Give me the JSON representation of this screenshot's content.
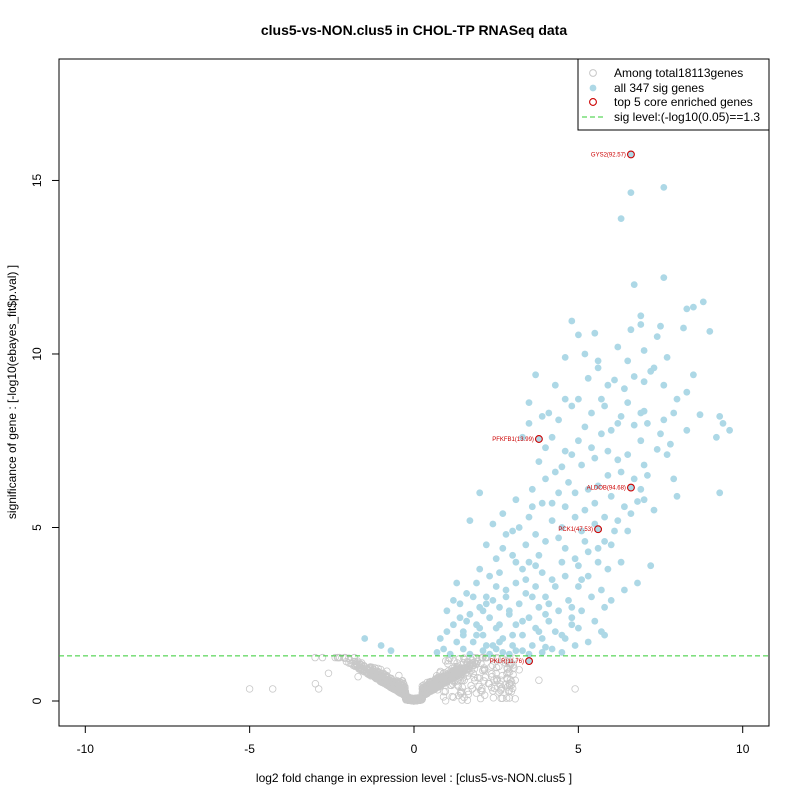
{
  "chart_data": {
    "type": "scatter",
    "title": "clus5-vs-NON.clus5 in CHOL-TP RNASeq data",
    "xlabel": "log2 fold change in expression level : [clus5-vs-NON.clus5 ]",
    "ylabel": "significance of gene : [-log10(ebayes_fit$p.val) ]",
    "xlim": [
      -10.8,
      10.8
    ],
    "ylim": [
      -0.72,
      18.5
    ],
    "x_ticks": [
      -10,
      -5,
      0,
      5,
      10
    ],
    "y_ticks": [
      0,
      5,
      10,
      15
    ],
    "sig_level": 1.3,
    "colors": {
      "background_points": "#c8c8c8",
      "sig_points": "#add8e6",
      "core_points": "#cc0000",
      "sig_line": "#33cc33"
    },
    "legend": {
      "position": "top-right",
      "entries": [
        {
          "label": "Among total18113genes",
          "style": "open-grey"
        },
        {
          "label": "all 347 sig genes",
          "style": "filled-blue"
        },
        {
          "label": "top 5 core enriched genes",
          "style": "open-red"
        },
        {
          "label": "sig level:(-log10(0.05)==1.3",
          "style": "dashed-green"
        }
      ]
    },
    "core_genes": [
      {
        "label": "GYS2(92.57)",
        "x": 6.6,
        "y": 15.75
      },
      {
        "label": "PFKFB1(13.99)",
        "x": 3.8,
        "y": 7.55
      },
      {
        "label": "ALDOB(94.68)",
        "x": 6.6,
        "y": 6.15
      },
      {
        "label": "PCK1(47.53)",
        "x": 5.6,
        "y": 4.95
      },
      {
        "label": "PKLR(11.76)",
        "x": 3.5,
        "y": 1.15
      }
    ],
    "sig_genes": [
      [
        7.6,
        14.8
      ],
      [
        6.6,
        14.65
      ],
      [
        6.3,
        13.9
      ],
      [
        7.6,
        12.2
      ],
      [
        6.7,
        12.0
      ],
      [
        8.8,
        11.5
      ],
      [
        8.3,
        11.3
      ],
      [
        8.5,
        11.35
      ],
      [
        6.9,
        10.85
      ],
      [
        7.5,
        10.8
      ],
      [
        4.8,
        10.95
      ],
      [
        5.5,
        10.6
      ],
      [
        6.6,
        10.7
      ],
      [
        7.4,
        10.5
      ],
      [
        8.2,
        10.75
      ],
      [
        9.0,
        10.65
      ],
      [
        5.0,
        10.55
      ],
      [
        5.2,
        10.0
      ],
      [
        6.2,
        10.2
      ],
      [
        7.0,
        10.1
      ],
      [
        7.7,
        9.9
      ],
      [
        4.6,
        9.9
      ],
      [
        5.6,
        9.6
      ],
      [
        6.5,
        9.8
      ],
      [
        7.2,
        9.5
      ],
      [
        5.9,
        9.1
      ],
      [
        6.4,
        9.0
      ],
      [
        7.0,
        9.2
      ],
      [
        3.7,
        9.4
      ],
      [
        4.3,
        9.1
      ],
      [
        5.3,
        9.3
      ],
      [
        6.1,
        9.25
      ],
      [
        7.6,
        9.1
      ],
      [
        8.3,
        8.9
      ],
      [
        4.6,
        8.7
      ],
      [
        5.0,
        8.7
      ],
      [
        5.8,
        8.5
      ],
      [
        6.5,
        8.6
      ],
      [
        7.0,
        8.35
      ],
      [
        8.0,
        8.7
      ],
      [
        3.5,
        8.6
      ],
      [
        4.1,
        8.3
      ],
      [
        4.8,
        8.5
      ],
      [
        3.9,
        8.2
      ],
      [
        5.4,
        8.3
      ],
      [
        6.3,
        8.2
      ],
      [
        7.1,
        8.0
      ],
      [
        7.6,
        8.1
      ],
      [
        8.7,
        8.25
      ],
      [
        9.3,
        8.2
      ],
      [
        3.5,
        8.0
      ],
      [
        4.4,
        8.1
      ],
      [
        5.2,
        7.9
      ],
      [
        6.0,
        7.8
      ],
      [
        6.7,
        7.95
      ],
      [
        7.5,
        7.7
      ],
      [
        8.3,
        7.8
      ],
      [
        9.6,
        7.8
      ],
      [
        3.3,
        7.6
      ],
      [
        4.2,
        7.6
      ],
      [
        5.7,
        7.7
      ],
      [
        6.9,
        7.5
      ],
      [
        7.8,
        7.4
      ],
      [
        9.2,
        7.6
      ],
      [
        4.0,
        7.3
      ],
      [
        4.8,
        7.1
      ],
      [
        5.5,
        7.0
      ],
      [
        6.2,
        6.95
      ],
      [
        7.4,
        7.25
      ],
      [
        3.8,
        6.9
      ],
      [
        4.5,
        6.75
      ],
      [
        5.1,
        6.8
      ],
      [
        6.3,
        6.6
      ],
      [
        7.1,
        6.5
      ],
      [
        4.0,
        6.4
      ],
      [
        4.7,
        6.3
      ],
      [
        5.9,
        6.5
      ],
      [
        6.7,
        6.4
      ],
      [
        3.6,
        6.1
      ],
      [
        4.4,
        6.0
      ],
      [
        5.3,
        6.1
      ],
      [
        6.0,
        5.9
      ],
      [
        6.8,
        5.75
      ],
      [
        7.3,
        5.5
      ],
      [
        2.0,
        6.0
      ],
      [
        3.1,
        5.8
      ],
      [
        3.9,
        5.7
      ],
      [
        4.6,
        5.6
      ],
      [
        5.2,
        5.5
      ],
      [
        5.8,
        5.3
      ],
      [
        6.4,
        5.6
      ],
      [
        2.7,
        5.4
      ],
      [
        3.5,
        5.3
      ],
      [
        4.2,
        5.2
      ],
      [
        4.9,
        5.3
      ],
      [
        5.5,
        5.1
      ],
      [
        6.2,
        5.2
      ],
      [
        1.7,
        5.2
      ],
      [
        2.4,
        5.1
      ],
      [
        3.0,
        4.9
      ],
      [
        3.7,
        4.8
      ],
      [
        4.4,
        4.7
      ],
      [
        5.1,
        4.9
      ],
      [
        5.8,
        4.6
      ],
      [
        6.5,
        4.9
      ],
      [
        2.2,
        4.5
      ],
      [
        2.7,
        4.4
      ],
      [
        3.4,
        4.5
      ],
      [
        4.0,
        4.6
      ],
      [
        4.6,
        4.4
      ],
      [
        5.3,
        4.3
      ],
      [
        6.0,
        4.5
      ],
      [
        2.5,
        4.1
      ],
      [
        3.1,
        4.0
      ],
      [
        3.8,
        4.2
      ],
      [
        4.5,
        4.0
      ],
      [
        5.0,
        3.9
      ],
      [
        5.6,
        4.0
      ],
      [
        7.2,
        3.9
      ],
      [
        2.0,
        3.8
      ],
      [
        2.6,
        3.7
      ],
      [
        3.3,
        3.8
      ],
      [
        3.9,
        3.7
      ],
      [
        4.6,
        3.6
      ],
      [
        5.3,
        3.6
      ],
      [
        1.3,
        3.4
      ],
      [
        1.9,
        3.4
      ],
      [
        2.5,
        3.3
      ],
      [
        3.1,
        3.4
      ],
      [
        3.7,
        3.3
      ],
      [
        4.3,
        3.3
      ],
      [
        5.0,
        3.3
      ],
      [
        5.7,
        3.2
      ],
      [
        6.4,
        3.2
      ],
      [
        1.6,
        3.1
      ],
      [
        2.2,
        3.0
      ],
      [
        2.8,
        3.0
      ],
      [
        3.4,
        3.1
      ],
      [
        4.0,
        3.0
      ],
      [
        4.7,
        2.9
      ],
      [
        5.4,
        3.0
      ],
      [
        6.0,
        2.9
      ],
      [
        1.4,
        2.8
      ],
      [
        2.0,
        2.7
      ],
      [
        2.6,
        2.7
      ],
      [
        3.2,
        2.8
      ],
      [
        3.8,
        2.7
      ],
      [
        4.4,
        2.6
      ],
      [
        5.1,
        2.6
      ],
      [
        5.8,
        2.7
      ],
      [
        1.0,
        2.6
      ],
      [
        1.7,
        2.5
      ],
      [
        2.3,
        2.4
      ],
      [
        2.9,
        2.5
      ],
      [
        3.5,
        2.4
      ],
      [
        4.1,
        2.3
      ],
      [
        4.8,
        2.4
      ],
      [
        5.5,
        2.3
      ],
      [
        1.2,
        2.2
      ],
      [
        1.9,
        2.2
      ],
      [
        2.5,
        2.1
      ],
      [
        3.1,
        2.2
      ],
      [
        3.7,
        2.1
      ],
      [
        4.3,
        2.0
      ],
      [
        5.0,
        2.1
      ],
      [
        5.7,
        2.0
      ],
      [
        1.0,
        2.0
      ],
      [
        1.5,
        1.9
      ],
      [
        2.1,
        1.9
      ],
      [
        2.7,
        1.8
      ],
      [
        3.3,
        1.9
      ],
      [
        3.9,
        1.8
      ],
      [
        4.6,
        1.8
      ],
      [
        5.3,
        1.7
      ],
      [
        0.8,
        1.8
      ],
      [
        1.3,
        1.7
      ],
      [
        1.8,
        1.7
      ],
      [
        2.4,
        1.6
      ],
      [
        3.0,
        1.6
      ],
      [
        3.6,
        1.6
      ],
      [
        4.2,
        1.5
      ],
      [
        4.9,
        1.6
      ],
      [
        0.9,
        1.5
      ],
      [
        1.5,
        1.5
      ],
      [
        2.1,
        1.45
      ],
      [
        2.7,
        1.4
      ],
      [
        3.3,
        1.45
      ],
      [
        3.9,
        1.4
      ],
      [
        4.5,
        1.4
      ],
      [
        1.1,
        1.35
      ],
      [
        1.7,
        1.35
      ],
      [
        2.3,
        1.35
      ],
      [
        2.9,
        1.35
      ],
      [
        3.5,
        1.35
      ],
      [
        -1.5,
        1.8
      ],
      [
        -0.7,
        1.45
      ],
      [
        -1.0,
        1.6
      ],
      [
        0.7,
        1.4
      ],
      [
        2.2,
        1.6
      ],
      [
        2.6,
        1.7
      ],
      [
        3.3,
        2.3
      ],
      [
        4.0,
        2.5
      ],
      [
        4.8,
        2.2
      ],
      [
        2.9,
        2.6
      ],
      [
        1.6,
        2.3
      ],
      [
        2.0,
        2.1
      ],
      [
        3.6,
        3.0
      ],
      [
        4.2,
        3.5
      ],
      [
        2.3,
        3.6
      ],
      [
        2.8,
        3.2
      ],
      [
        3.0,
        4.2
      ],
      [
        3.5,
        4.0
      ],
      [
        2.8,
        4.8
      ],
      [
        3.2,
        5.0
      ],
      [
        4.2,
        5.7
      ],
      [
        4.9,
        6.0
      ],
      [
        5.6,
        6.2
      ],
      [
        3.6,
        5.6
      ],
      [
        4.3,
        6.6
      ],
      [
        5.0,
        7.5
      ],
      [
        4.6,
        7.2
      ],
      [
        5.4,
        7.3
      ],
      [
        6.5,
        7.1
      ],
      [
        7.0,
        6.8
      ],
      [
        5.9,
        7.2
      ],
      [
        6.2,
        8.0
      ],
      [
        5.7,
        8.7
      ],
      [
        6.9,
        8.3
      ],
      [
        7.3,
        9.6
      ],
      [
        6.7,
        9.35
      ],
      [
        5.6,
        9.8
      ],
      [
        6.9,
        11.1
      ],
      [
        7.9,
        8.3
      ],
      [
        8.5,
        9.4
      ],
      [
        9.4,
        8.0
      ],
      [
        9.3,
        6.0
      ],
      [
        7.7,
        7.1
      ],
      [
        5.1,
        3.5
      ],
      [
        5.9,
        3.8
      ],
      [
        6.8,
        3.4
      ],
      [
        3.0,
        1.9
      ],
      [
        2.1,
        2.6
      ],
      [
        1.2,
        2.9
      ],
      [
        1.5,
        2.0
      ],
      [
        4.5,
        5.0
      ],
      [
        5.2,
        4.6
      ],
      [
        6.3,
        4.0
      ],
      [
        5.5,
        5.7
      ],
      [
        4.8,
        2.7
      ],
      [
        4.1,
        2.8
      ],
      [
        3.4,
        3.5
      ],
      [
        2.4,
        2.9
      ],
      [
        1.8,
        3.0
      ],
      [
        2.6,
        2.2
      ],
      [
        3.8,
        2.0
      ],
      [
        4.5,
        1.9
      ],
      [
        5.8,
        1.9
      ],
      [
        3.1,
        1.45
      ],
      [
        4.0,
        1.55
      ],
      [
        2.5,
        1.5
      ],
      [
        1.9,
        1.9
      ],
      [
        1.4,
        2.4
      ],
      [
        2.2,
        2.8
      ],
      [
        3.7,
        3.9
      ],
      [
        4.9,
        4.1
      ],
      [
        5.6,
        4.4
      ],
      [
        6.1,
        4.9
      ],
      [
        6.6,
        5.4
      ],
      [
        7.0,
        5.8
      ],
      [
        7.9,
        6.4
      ],
      [
        8.0,
        5.9
      ],
      [
        6.9,
        6.1
      ]
    ]
  }
}
